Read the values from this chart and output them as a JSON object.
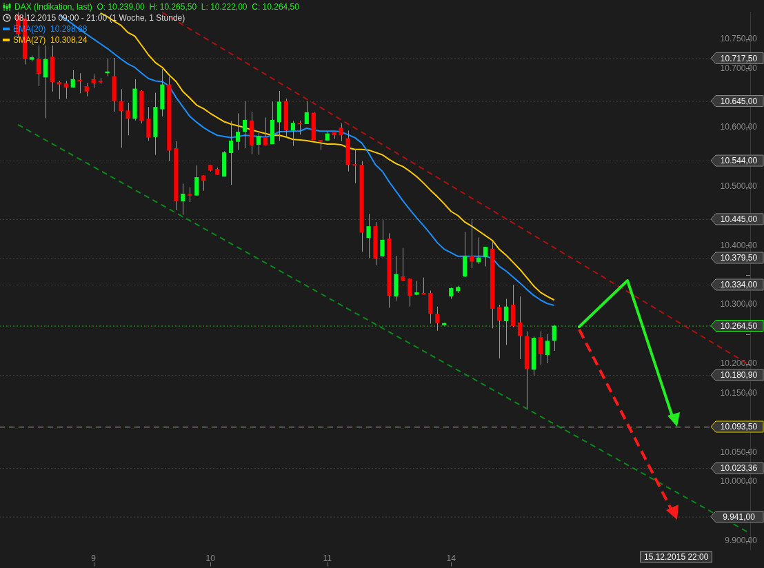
{
  "chart_data": {
    "type": "candlestick",
    "title": "DAX (Indikation, last)  O: 10.239,00  H: 10.265,50  L: 10.222,00  C: 10.264,50",
    "subtitle": "08.12.2015 09:00 - 21:00 (1 Woche, 1 Stunde)",
    "categories": [
      null,
      null,
      null,
      null,
      null,
      null,
      null,
      null,
      null,
      null,
      null,
      "9",
      null,
      null,
      null,
      null,
      null,
      null,
      null,
      null,
      null,
      null,
      null,
      null,
      null,
      null,
      null,
      null,
      "10",
      null,
      null,
      null,
      null,
      null,
      null,
      null,
      null,
      null,
      null,
      null,
      null,
      null,
      null,
      null,
      null,
      "11",
      null,
      null,
      null,
      null,
      null,
      null,
      null,
      null,
      null,
      null,
      null,
      null,
      null,
      null,
      null,
      null,
      null,
      "14",
      null,
      null,
      null,
      null,
      null,
      null,
      null,
      null,
      null,
      null,
      null,
      null,
      null,
      null,
      null,
      null,
      null,
      null,
      null,
      null,
      null,
      null,
      null,
      null,
      null,
      null,
      null,
      null,
      null,
      null,
      null,
      null,
      null,
      null,
      null,
      null,
      null,
      null,
      null,
      null,
      null,
      null,
      null
    ],
    "ohlc": [
      [
        10790,
        10795,
        10752,
        10758
      ],
      [
        10785,
        10795,
        10707,
        10716
      ],
      [
        10715,
        10722,
        10712,
        10719
      ],
      [
        10716,
        10739,
        10670,
        10691
      ],
      [
        10685,
        10739,
        10616,
        10716
      ],
      [
        10720,
        10739,
        10661,
        10677
      ],
      [
        10677,
        10679,
        10648,
        10673
      ],
      [
        10675,
        10679,
        10649,
        10668
      ],
      [
        10668,
        10697,
        10668,
        10682
      ],
      [
        10681,
        10692,
        10658,
        10678
      ],
      [
        10670,
        10675,
        10653,
        10661
      ],
      [
        10682,
        10690,
        10667,
        10675
      ],
      [
        10679,
        10684,
        10674,
        10678
      ],
      [
        10692,
        10717,
        10687,
        10695
      ],
      [
        10687,
        10718,
        10627,
        10645
      ],
      [
        10645,
        10665,
        10566,
        10628
      ],
      [
        10629,
        10642,
        10587,
        10615
      ],
      [
        10615,
        10682,
        10612,
        10666
      ],
      [
        10662,
        10663,
        10607,
        10611
      ],
      [
        10615,
        10635,
        10578,
        10583
      ],
      [
        10584,
        10659,
        10554,
        10635
      ],
      [
        10631,
        10699,
        10619,
        10673
      ],
      [
        10673,
        10686,
        10543,
        10561
      ],
      [
        10565,
        10577,
        10460,
        10475
      ],
      [
        10475,
        10505,
        10452,
        10488
      ],
      [
        10487,
        10499,
        10474,
        10485
      ],
      [
        10485,
        10536,
        10485,
        10516
      ],
      [
        10519,
        10519,
        10493,
        10510
      ],
      [
        10537,
        10537,
        10526,
        10527
      ],
      [
        10530,
        10532,
        10520,
        10520
      ],
      [
        10517,
        10560,
        10517,
        10558
      ],
      [
        10557,
        10611,
        10503,
        10578
      ],
      [
        10576,
        10624,
        10562,
        10593
      ],
      [
        10593,
        10645,
        10565,
        10613
      ],
      [
        10612,
        10627,
        10555,
        10570
      ],
      [
        10571,
        10591,
        10554,
        10586
      ],
      [
        10584,
        10617,
        10570,
        10570
      ],
      [
        10572,
        10644,
        10572,
        10613
      ],
      [
        10609,
        10662,
        10578,
        10644
      ],
      [
        10645,
        10649,
        10583,
        10595
      ],
      [
        10595,
        10611,
        10569,
        10608
      ],
      [
        10608,
        10612,
        10588,
        10607
      ],
      [
        10606,
        10645,
        10606,
        10626
      ],
      [
        10625,
        10627,
        10579,
        10579
      ],
      [
        10579,
        10579,
        10562,
        10576
      ],
      [
        10578,
        10594,
        10578,
        10590
      ],
      [
        10592,
        10592,
        10581,
        10587
      ],
      [
        10600,
        10607,
        10577,
        10587
      ],
      [
        10582,
        10595,
        10526,
        10537
      ],
      [
        10538,
        10564,
        10506,
        10537
      ],
      [
        10537,
        10543,
        10390,
        10422
      ],
      [
        10413,
        10454,
        10379,
        10433
      ],
      [
        10433,
        10440,
        10367,
        10378
      ],
      [
        10382,
        10444,
        10381,
        10410
      ],
      [
        10412,
        10421,
        10295,
        10315
      ],
      [
        10314,
        10383,
        10307,
        10352
      ],
      [
        10348,
        10396,
        10340,
        10341
      ],
      [
        10344,
        10345,
        10297,
        10315
      ],
      [
        10317,
        10340,
        10316,
        10321
      ],
      [
        10320,
        10346,
        10318,
        10319
      ],
      [
        10320,
        10324,
        10268,
        10285
      ],
      [
        10285,
        10297,
        10256,
        10269
      ],
      [
        10265,
        10269,
        10265,
        10269
      ],
      [
        10314,
        10329,
        10310,
        10328
      ],
      [
        10323,
        10332,
        10320,
        10330
      ],
      [
        10348,
        10423,
        10347,
        10382
      ],
      [
        10383,
        10445,
        10362,
        10373
      ],
      [
        10372,
        10414,
        10369,
        10380
      ],
      [
        10381,
        10398,
        10365,
        10398
      ],
      [
        10395,
        10406,
        10260,
        10293
      ],
      [
        10296,
        10300,
        10209,
        10273
      ],
      [
        10272,
        10310,
        10232,
        10297
      ],
      [
        10300,
        10334,
        10262,
        10264
      ],
      [
        10270,
        10314,
        10208,
        10247
      ],
      [
        10247,
        10255,
        10124,
        10191
      ],
      [
        10190,
        10246,
        10180,
        10244
      ],
      [
        10245,
        10255,
        10198,
        10216
      ],
      [
        10215,
        10250,
        10201,
        10239
      ],
      [
        10239,
        10265.5,
        10222,
        10264.5
      ],
      null,
      null,
      null,
      null,
      null,
      null,
      null,
      null,
      null,
      null,
      null,
      null,
      null,
      null,
      null,
      null,
      null,
      null,
      null,
      null,
      null,
      null,
      null,
      null,
      null,
      null,
      null,
      null
    ],
    "colors": [
      "#ff0000",
      "#ff0000",
      "#00ff24",
      "#ff0000",
      "#00ff24",
      "#ff0000",
      "#ff0000",
      "#ff0000",
      "#00ff24",
      "#ff0000",
      "#ff0000",
      "#ff0000",
      "#ff0000",
      "#00ff24",
      "#ff0000",
      "#ff0000",
      "#ff0000",
      "#00ff24",
      "#ff0000",
      "#ff0000",
      "#00ff24",
      "#00ff24",
      "#ff0000",
      "#ff0000",
      "#00ff24",
      "#ff0000",
      "#00ff24",
      "#ff0000",
      "#ff0000",
      "#ff0000",
      "#00ff24",
      "#00ff24",
      "#00ff24",
      "#00ff24",
      "#ff0000",
      "#00ff24",
      "#ff0000",
      "#00ff24",
      "#00ff24",
      "#ff0000",
      "#00ff24",
      "#ff0000",
      "#00ff24",
      "#ff0000",
      "#ff0000",
      "#00ff24",
      "#ff0000",
      "#ff0000",
      "#ff0000",
      "#ff0000",
      "#ff0000",
      "#00ff24",
      "#ff0000",
      "#00ff24",
      "#ff0000",
      "#00ff24",
      "#ff0000",
      "#ff0000",
      "#00ff24",
      "#ff0000",
      "#ff0000",
      "#ff0000",
      "#00ff24",
      "#00ff24",
      "#00ff24",
      "#00ff24",
      "#ff0000",
      "#00ff24",
      "#00ff24",
      "#ff0000",
      "#ff0000",
      "#00ff24",
      "#ff0000",
      "#ff0000",
      "#ff0000",
      "#00ff24",
      "#ff0000",
      "#00ff24",
      "#00ff24",
      null,
      null,
      null,
      null,
      null,
      null,
      null,
      null,
      null,
      null,
      null,
      null,
      null,
      null,
      null,
      null,
      null,
      null,
      null,
      null,
      null,
      null,
      null,
      null,
      null,
      null,
      null,
      null
    ],
    "series": [
      {
        "type": "line",
        "name": "EMA(20)  10.298,68",
        "color": "#1a90ff",
        "values": [
          null,
          null,
          null,
          null,
          null,
          null,
          10791,
          10783,
          10775,
          10766,
          10758,
          10750,
          10742,
          10734,
          10725,
          10716,
          10708,
          10702,
          10692,
          10683,
          10679,
          10678,
          10670,
          10651,
          10635,
          10619,
          10609,
          10600,
          10593,
          10587,
          10585,
          10583,
          10585,
          10587,
          10586,
          10585,
          10584,
          10587,
          10593,
          10593,
          10594,
          10594,
          10599,
          10596,
          10594,
          10594,
          10594,
          10593,
          10588,
          10583,
          10574,
          10557,
          10537,
          10526,
          10508,
          10492,
          10476,
          10461,
          10447,
          10434,
          10420,
          10405,
          10394,
          10388,
          10382,
          10382,
          10382,
          10382,
          10382,
          10379,
          10365,
          10357,
          10347,
          10337,
          10326,
          10316,
          10308,
          10302,
          10299,
          null,
          null,
          null,
          null,
          null,
          null,
          null,
          null,
          null,
          null,
          null,
          null,
          null,
          null,
          null,
          null,
          null,
          null,
          null,
          null,
          null,
          null,
          null,
          null,
          null,
          null,
          null,
          null
        ]
      },
      {
        "type": "line",
        "name": "SMA(27)  10.308,24",
        "color": "#ffcc00",
        "values": [
          null,
          null,
          null,
          null,
          null,
          null,
          null,
          null,
          null,
          null,
          null,
          null,
          10794,
          10788,
          10780,
          10773,
          10761,
          10755,
          10739,
          10723,
          10710,
          10702,
          10689,
          10678,
          10661,
          10650,
          10638,
          10632,
          10624,
          10617,
          10610,
          10606,
          10603,
          10600,
          10596,
          10593,
          10590,
          10587,
          10587,
          10584,
          10580,
          10579,
          10578,
          10576,
          10574,
          10572,
          10572,
          10571,
          10566,
          10563,
          10563,
          10562,
          10558,
          10554,
          10546,
          10539,
          10534,
          10526,
          10517,
          10506,
          10494,
          10483,
          10471,
          10458,
          10451,
          10440,
          10433,
          10425,
          10417,
          10409,
          10394,
          10384,
          10372,
          10360,
          10346,
          10332,
          10321,
          10314,
          10308,
          null,
          null,
          null,
          null,
          null,
          null,
          null,
          null,
          null,
          null,
          null,
          null,
          null,
          null,
          null,
          null,
          null,
          null,
          null,
          null,
          null,
          null,
          null,
          null,
          null,
          null,
          null,
          null
        ]
      },
      {
        "type": "line",
        "color": "#b01010",
        "line_style": "dashed",
        "values": [
          null,
          null,
          null,
          null,
          null,
          null,
          null,
          null,
          null,
          null,
          null,
          null,
          null,
          null,
          null,
          null,
          null,
          null,
          null,
          null,
          null,
          10795,
          null,
          null,
          null,
          null,
          null,
          null,
          null,
          null,
          null,
          null,
          null,
          null,
          null,
          null,
          null,
          null,
          null,
          null,
          null,
          null,
          null,
          null,
          null,
          null,
          null,
          null,
          null,
          null,
          null,
          null,
          null,
          null,
          null,
          null,
          null,
          null,
          null,
          null,
          null,
          null,
          null,
          null,
          null,
          null,
          null,
          null,
          null,
          null,
          null,
          null,
          null,
          null,
          null,
          null,
          null,
          null,
          null,
          null,
          null,
          null,
          null,
          null,
          null,
          null,
          null,
          null,
          null,
          null,
          null,
          null,
          null,
          null,
          null,
          null,
          null,
          null,
          null,
          null,
          null,
          null,
          null,
          null,
          null,
          null,
          10201
        ]
      },
      {
        "type": "line",
        "color": "#0a8a1a",
        "line_style": "dashed",
        "values": [
          10605,
          null,
          null,
          null,
          null,
          null,
          null,
          null,
          null,
          null,
          null,
          null,
          null,
          null,
          null,
          null,
          null,
          null,
          null,
          null,
          null,
          null,
          null,
          null,
          null,
          null,
          null,
          null,
          null,
          null,
          null,
          null,
          null,
          null,
          null,
          null,
          null,
          null,
          null,
          null,
          null,
          null,
          null,
          null,
          null,
          null,
          null,
          null,
          null,
          null,
          null,
          null,
          null,
          null,
          null,
          null,
          null,
          null,
          null,
          null,
          null,
          null,
          null,
          null,
          null,
          null,
          null,
          null,
          null,
          null,
          null,
          null,
          null,
          null,
          null,
          null,
          null,
          null,
          null,
          null,
          null,
          null,
          null,
          null,
          null,
          null,
          null,
          null,
          null,
          null,
          null,
          null,
          null,
          null,
          null,
          null,
          null,
          null,
          null,
          null,
          null,
          null,
          null,
          null,
          null,
          null,
          9916
        ]
      }
    ],
    "ylim": [
      9885,
      10796
    ],
    "yticks": [
      {
        "value": 9900,
        "label": "9.900,00"
      },
      {
        "value": 9950,
        "label": null
      },
      {
        "value": 10000,
        "label": "10.000,00"
      },
      {
        "value": 10050,
        "label": "10.050,00"
      },
      {
        "value": 10100,
        "label": null
      },
      {
        "value": 10150,
        "label": "10.150,00"
      },
      {
        "value": 10200,
        "label": "10.200,00"
      },
      {
        "value": 10250,
        "label": null
      },
      {
        "value": 10300,
        "label": "10.300,00"
      },
      {
        "value": 10350,
        "label": null
      },
      {
        "value": 10400,
        "label": "10.400,00"
      },
      {
        "value": 10450,
        "label": null
      },
      {
        "value": 10500,
        "label": "10.500,00"
      },
      {
        "value": 10550,
        "label": null
      },
      {
        "value": 10600,
        "label": "10.600,00"
      },
      {
        "value": 10650,
        "label": null
      },
      {
        "value": 10700,
        "label": "10.700,00"
      },
      {
        "value": 10750,
        "label": "10.750,00"
      }
    ],
    "ref_lines": [
      {
        "axis": "y",
        "value": 10717.5,
        "label": "10.717,50",
        "color": "#555555",
        "line_style": "dotted"
      },
      {
        "axis": "y",
        "value": 10645,
        "label": "10.645,00",
        "color": "#555555",
        "line_style": "dotted"
      },
      {
        "axis": "y",
        "value": 10544,
        "label": "10.544,00",
        "color": "#555555",
        "line_style": "dotted"
      },
      {
        "axis": "y",
        "value": 10445,
        "label": "10.445,00",
        "color": "#555555",
        "line_style": "dotted"
      },
      {
        "axis": "y",
        "value": 10379.5,
        "label": "10.379,50",
        "color": "#555555",
        "line_style": "dotted"
      },
      {
        "axis": "y",
        "value": 10334,
        "label": "10.334,00",
        "color": "#555555",
        "line_style": "dotted"
      },
      {
        "axis": "y",
        "value": 10264.5,
        "label": "10.264,50",
        "color": "#22ee22",
        "line_style": "dotted"
      },
      {
        "axis": "y",
        "value": 10180.9,
        "label": "10.180,90",
        "color": "#555555",
        "line_style": "dotted"
      },
      {
        "axis": "y",
        "value": 10093.5,
        "label": "10.093,50",
        "color": "#e6d200",
        "line_style": "dashed"
      },
      {
        "axis": "y",
        "value": 10023.36,
        "label": "10.023,36",
        "color": "#555555",
        "line_style": "dotted"
      },
      {
        "axis": "y",
        "value": 9941,
        "label": "9.941,00",
        "color": "#555555",
        "line_style": "dotted"
      }
    ],
    "annotations": [
      "15.12.2015 22:00"
    ],
    "legend": "top left",
    "grid": false,
    "marker": "none"
  }
}
